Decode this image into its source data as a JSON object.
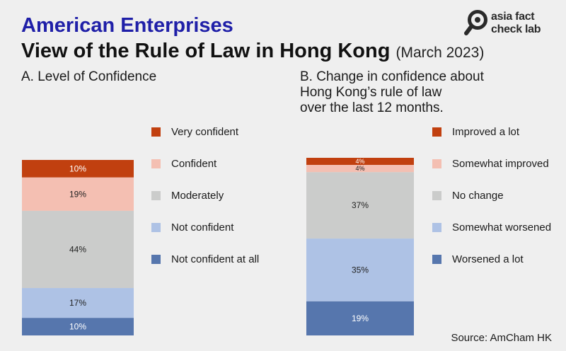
{
  "header": {
    "title_line1": "American Enterprises",
    "title_line2": "View of the Rule of Law in Hong Kong",
    "date": "(March 2023)"
  },
  "logo": {
    "line1": "asia fact",
    "line2": "check lab"
  },
  "source": "Source: AmCham HK",
  "colors": {
    "dark_red": "#c1400f",
    "light_red": "#f4bfb2",
    "gray": "#cbcccb",
    "light_blue": "#aec2e5",
    "dark_blue": "#5676ad",
    "title_blue": "#1f1fa8"
  },
  "chart_data": [
    {
      "type": "bar",
      "stacked": true,
      "title_lines": [
        "A. Level of Confidence"
      ],
      "categories": [
        "Very confident",
        "Confident",
        "Moderately",
        "Not confident",
        "Not confident at all"
      ],
      "values": [
        10,
        19,
        44,
        17,
        10
      ],
      "value_labels": [
        "10%",
        "19%",
        "44%",
        "17%",
        "10%"
      ],
      "unit": "%"
    },
    {
      "type": "bar",
      "stacked": true,
      "title_lines": [
        "B. Change in confidence about",
        "Hong Kong’s rule of law",
        "over the last 12 months."
      ],
      "categories": [
        "Improved a lot",
        "Somewhat improved",
        "No change",
        "Somewhat worsened",
        "Worsened a lot"
      ],
      "values": [
        4,
        4,
        37,
        35,
        19
      ],
      "value_labels": [
        "4%",
        "4%",
        "37%",
        "35%",
        "19%"
      ],
      "unit": "%"
    }
  ]
}
